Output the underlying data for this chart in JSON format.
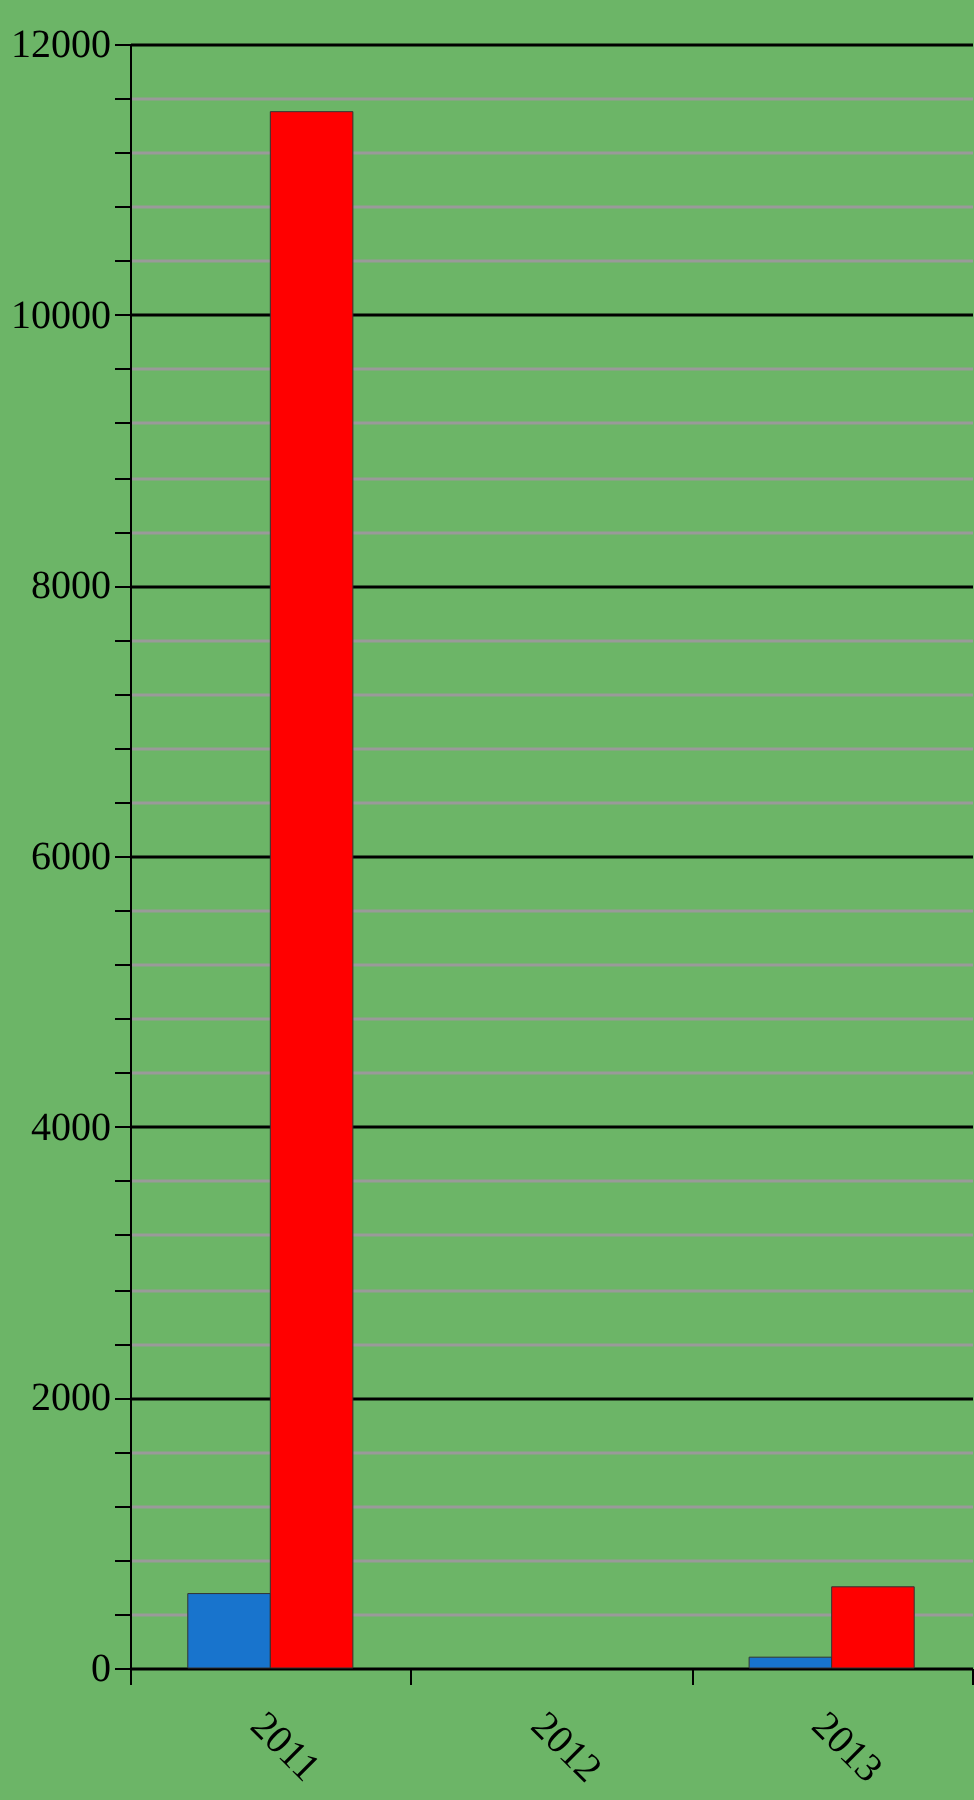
{
  "chart_data": {
    "type": "bar",
    "categories": [
      "2011",
      "2012",
      "2013"
    ],
    "series": [
      {
        "color": "#1874cd",
        "values": [
          550,
          null,
          80
        ]
      },
      {
        "color": "#ff0000",
        "values": [
          11500,
          null,
          600
        ]
      }
    ],
    "ylim": [
      0,
      12000
    ],
    "yticks": [
      0,
      {
        "value": 400,
        "label": null
      },
      {
        "value": 800,
        "label": null
      },
      {
        "value": 1200,
        "label": null
      },
      {
        "value": 1600,
        "label": null
      },
      2000,
      {
        "value": 2400,
        "label": null
      },
      {
        "value": 2800,
        "label": null
      },
      {
        "value": 3200,
        "label": null
      },
      {
        "value": 3600,
        "label": null
      },
      4000,
      {
        "value": 4400,
        "label": null
      },
      {
        "value": 4800,
        "label": null
      },
      {
        "value": 5200,
        "label": null
      },
      {
        "value": 5600,
        "label": null
      },
      6000,
      {
        "value": 6400,
        "label": null
      },
      {
        "value": 6800,
        "label": null
      },
      {
        "value": 7200,
        "label": null
      },
      {
        "value": 7600,
        "label": null
      },
      8000,
      {
        "value": 8400,
        "label": null
      },
      {
        "value": 8800,
        "label": null
      },
      {
        "value": 9200,
        "label": null
      },
      {
        "value": 9600,
        "label": null
      },
      10000,
      {
        "value": 10400,
        "label": null
      },
      {
        "value": 10800,
        "label": null
      },
      {
        "value": 11200,
        "label": null
      },
      {
        "value": 11600,
        "label": null
      },
      12000
    ],
    "grid": "y",
    "legend": false
  }
}
